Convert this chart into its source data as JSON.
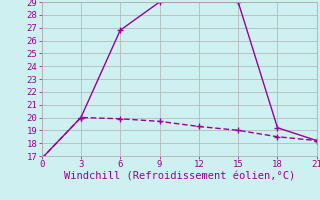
{
  "line1_x": [
    0,
    3,
    6,
    9,
    15,
    18,
    21
  ],
  "line1_y": [
    16.8,
    20.0,
    26.8,
    29.0,
    29.0,
    19.2,
    18.2
  ],
  "line2_x": [
    0,
    3,
    6,
    9,
    12,
    15,
    18,
    21
  ],
  "line2_y": [
    16.8,
    20.0,
    19.9,
    19.7,
    19.3,
    19.0,
    18.5,
    18.2
  ],
  "color": "#990099",
  "bg_color": "#cff0f0",
  "grid_color": "#b0b0b0",
  "xlabel": "Windchill (Refroidissement éolien,°C)",
  "xlim": [
    0,
    21
  ],
  "ylim": [
    17,
    29
  ],
  "xticks": [
    0,
    3,
    6,
    9,
    12,
    15,
    18,
    21
  ],
  "yticks": [
    17,
    18,
    19,
    20,
    21,
    22,
    23,
    24,
    25,
    26,
    27,
    28,
    29
  ],
  "marker": "+",
  "markersize": 5,
  "linewidth": 1.0,
  "xlabel_fontsize": 7.5,
  "tick_fontsize": 6.5
}
